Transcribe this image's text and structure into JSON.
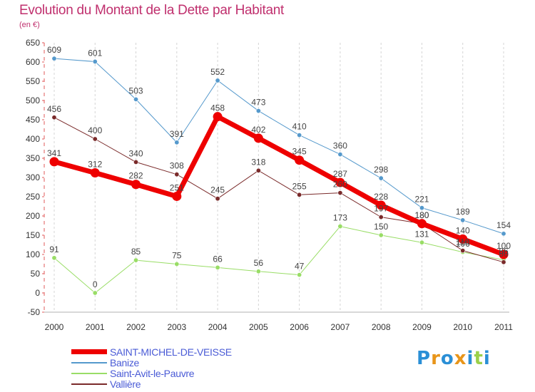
{
  "chart_data": {
    "type": "line",
    "title": "Evolution du Montant de la Dette par Habitant",
    "subtitle": "(en €)",
    "categories": [
      "2000",
      "2001",
      "2002",
      "2003",
      "2004",
      "2005",
      "2006",
      "2007",
      "2008",
      "2009",
      "2010",
      "2011"
    ],
    "ylim": [
      -50,
      650
    ],
    "yticks": [
      -50,
      0,
      50,
      100,
      150,
      200,
      250,
      300,
      350,
      400,
      450,
      500,
      550,
      600,
      650
    ],
    "grid": "vertical dashed",
    "legend_position": "bottom-left",
    "series": [
      {
        "name": "Banize",
        "color": "#5599cc",
        "width": 1,
        "values": [
          609,
          601,
          503,
          391,
          552,
          473,
          410,
          360,
          298,
          221,
          189,
          154
        ],
        "labels": [
          "609",
          "601",
          "503",
          "391",
          "552",
          "473",
          "410",
          "360",
          "298",
          "221",
          "189",
          "154"
        ]
      },
      {
        "name": "Saint-Avit-le-Pauvre",
        "color": "#99dd66",
        "width": 1,
        "values": [
          91,
          0,
          85,
          75,
          66,
          56,
          47,
          173,
          150,
          131,
          106,
          86
        ],
        "labels": [
          "91",
          "0",
          "85",
          "75",
          "66",
          "56",
          "47",
          "173",
          "150",
          "131",
          "106",
          "86"
        ]
      },
      {
        "name": "Vallière",
        "color": "#7a2a2a",
        "width": 1,
        "values": [
          456,
          400,
          340,
          308,
          245,
          318,
          255,
          260,
          197,
          180,
          110,
          80
        ],
        "labels": [
          "456",
          "400",
          "340",
          "308",
          "245",
          "318",
          "255",
          "260",
          "197",
          "180",
          "110",
          "80"
        ]
      },
      {
        "name": "SAINT-MICHEL-DE-VEISSE",
        "color": "#ee0000",
        "width": 7,
        "values": [
          341,
          312,
          282,
          251,
          458,
          402,
          345,
          287,
          228,
          180,
          140,
          100
        ],
        "labels": [
          "341",
          "312",
          "282",
          "251",
          "458",
          "402",
          "345",
          "287",
          "228",
          "180",
          "140",
          "100"
        ]
      }
    ]
  },
  "legend_order": [
    "SAINT-MICHEL-DE-VEISSE",
    "Banize",
    "Saint-Avit-le-Pauvre",
    "Vallière"
  ],
  "logo": {
    "text": "Proxiti",
    "colors": [
      "#2a8fd6",
      "#e8951a",
      "#2a8fd6",
      "#e8951a",
      "#2a8fd6",
      "#9bd04a",
      "#2a8fd6"
    ]
  }
}
